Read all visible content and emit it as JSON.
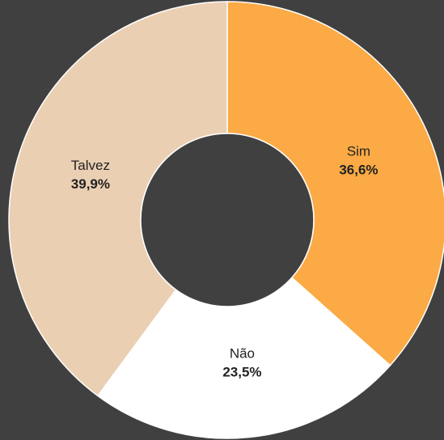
{
  "chart_data": {
    "type": "donut",
    "categories": [
      "Sim",
      "Não",
      "Talvez"
    ],
    "values": [
      36.6,
      23.5,
      39.9
    ],
    "value_labels": [
      "36,6%",
      "23,5%",
      "39,9%"
    ],
    "colors": [
      "#fbaa45",
      "#ffffff",
      "#ebcfb2"
    ]
  }
}
